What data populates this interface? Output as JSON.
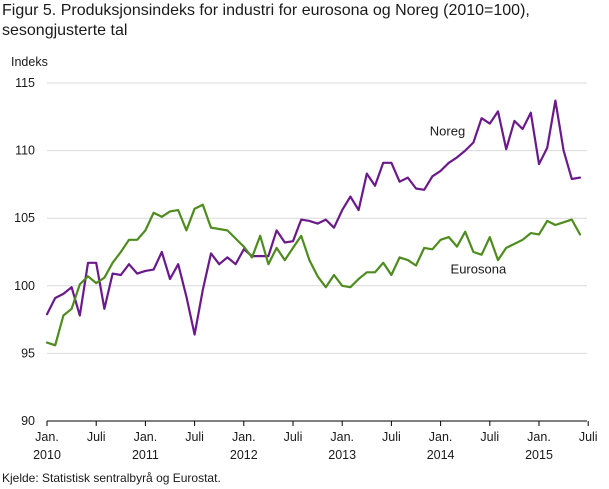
{
  "page": {
    "title": "Figur 5. Produksjonsindeks for industri for eurosona og Noreg (2010=100), sesongjusterte tal",
    "source": "Kjelde: Statistisk sentralbyrå og Eurostat."
  },
  "chart_data": {
    "type": "line",
    "title": "Figur 5. Produksjonsindeks for industri for eurosona og Noreg (2010=100), sesongjusterte tal",
    "ylabel": "Indeks",
    "xlabel": "",
    "ylim": [
      90,
      115
    ],
    "yticks": [
      90,
      95,
      100,
      105,
      110,
      115
    ],
    "grid": "horizontal",
    "legend": "inline labels",
    "x_ticks": [
      {
        "index": 0,
        "line1": "Jan.",
        "line2": "2010"
      },
      {
        "index": 6,
        "line1": "Juli",
        "line2": ""
      },
      {
        "index": 12,
        "line1": "Jan.",
        "line2": "2011"
      },
      {
        "index": 18,
        "line1": "Juli",
        "line2": ""
      },
      {
        "index": 24,
        "line1": "Jan.",
        "line2": "2012"
      },
      {
        "index": 30,
        "line1": "Juli",
        "line2": ""
      },
      {
        "index": 36,
        "line1": "Jan.",
        "line2": "2013"
      },
      {
        "index": 42,
        "line1": "Juli",
        "line2": ""
      },
      {
        "index": 48,
        "line1": "Jan.",
        "line2": "2014"
      },
      {
        "index": 54,
        "line1": "Juli",
        "line2": ""
      },
      {
        "index": 60,
        "line1": "Jan.",
        "line2": "2015"
      },
      {
        "index": 66,
        "line1": "Juli",
        "line2": ""
      }
    ],
    "x_start": "2010-01",
    "x_end": "2015-08",
    "series": [
      {
        "name": "Noreg",
        "color": "#6a1a8a",
        "values": [
          97.9,
          99.1,
          99.4,
          99.9,
          97.8,
          101.7,
          101.7,
          98.3,
          100.9,
          100.8,
          101.6,
          100.9,
          101.1,
          101.2,
          102.5,
          100.5,
          101.6,
          99.2,
          96.4,
          99.7,
          102.4,
          101.6,
          102.1,
          101.6,
          102.7,
          102.2,
          102.2,
          102.2,
          104.1,
          103.2,
          103.3,
          104.9,
          104.8,
          104.6,
          104.9,
          104.3,
          105.6,
          106.6,
          105.6,
          108.3,
          107.4,
          109.1,
          109.1,
          107.7,
          108.0,
          107.2,
          107.1,
          108.1,
          108.5,
          109.1,
          109.5,
          110.0,
          110.6,
          112.4,
          112.0,
          112.9,
          110.1,
          112.2,
          111.6,
          112.8,
          109.0,
          110.2,
          113.7,
          110.0,
          107.9,
          108.0
        ]
      },
      {
        "name": "Eurosona",
        "color": "#4e8c1f",
        "values": [
          95.8,
          95.6,
          97.8,
          98.3,
          100.1,
          100.7,
          100.2,
          100.6,
          101.7,
          102.5,
          103.4,
          103.4,
          104.1,
          105.4,
          105.1,
          105.5,
          105.6,
          104.1,
          105.7,
          106.0,
          104.3,
          104.2,
          104.1,
          103.5,
          102.9,
          102.1,
          103.7,
          101.6,
          102.8,
          101.9,
          102.8,
          103.7,
          101.9,
          100.7,
          99.9,
          100.8,
          100.0,
          99.9,
          100.5,
          101.0,
          101.0,
          101.7,
          100.8,
          102.1,
          101.9,
          101.5,
          102.8,
          102.7,
          103.4,
          103.6,
          102.9,
          104.0,
          102.5,
          102.3,
          103.6,
          101.9,
          102.8,
          103.1,
          103.4,
          103.9,
          103.8,
          104.8,
          104.5,
          104.7,
          104.9,
          103.8
        ]
      }
    ],
    "series_labels": [
      {
        "series": "Noreg",
        "text": "Noreg",
        "anchor_index": 51,
        "anchor_value": 111.1
      },
      {
        "series": "Eurosona",
        "text": "Eurosona",
        "anchor_index": 56,
        "anchor_value": 100.9
      }
    ]
  }
}
